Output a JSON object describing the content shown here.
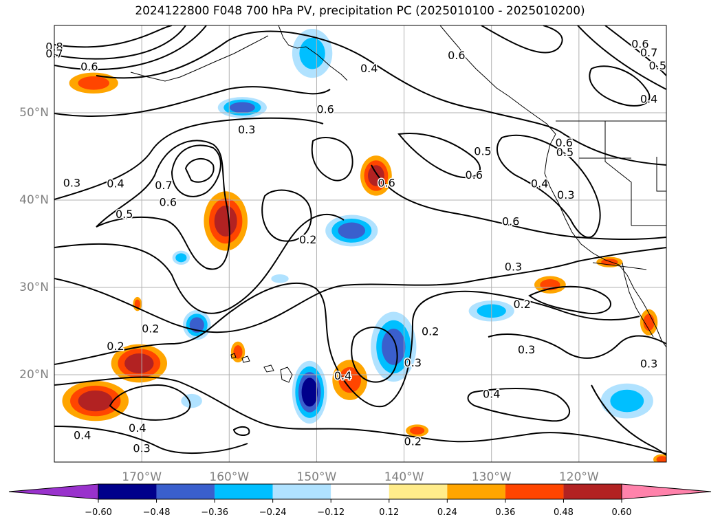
{
  "title": "2024122800 F048 700 hPa PV, precipitation PC (2025010100 - 2025010200)",
  "chart_data": {
    "type": "contour-map",
    "title": "2024122800 F048 700 hPa PV, precipitation PC (2025010100 - 2025010200)",
    "projection": "PlateCarree",
    "lon_range": [
      -180,
      -110
    ],
    "lat_range": [
      10,
      60
    ],
    "grid": true,
    "lat_ticks": [
      {
        "value": 20,
        "label": "20°N"
      },
      {
        "value": 30,
        "label": "30°N"
      },
      {
        "value": 40,
        "label": "40°N"
      },
      {
        "value": 50,
        "label": "50°N"
      }
    ],
    "lon_ticks": [
      {
        "value": -170,
        "label": "170°W"
      },
      {
        "value": -160,
        "label": "160°W"
      },
      {
        "value": -150,
        "label": "150°W"
      },
      {
        "value": -140,
        "label": "140°W"
      },
      {
        "value": -130,
        "label": "130°W"
      },
      {
        "value": -120,
        "label": "120°W"
      }
    ],
    "contour_variable": "700 hPa PV",
    "contour_labels": [
      {
        "text": "0.8",
        "lon": -180,
        "lat": 57.5
      },
      {
        "text": "0.7",
        "lon": -180,
        "lat": 56.7
      },
      {
        "text": "0.6",
        "lon": -176,
        "lat": 55.2
      },
      {
        "text": "0.4",
        "lon": -144,
        "lat": 55
      },
      {
        "text": "0.6",
        "lon": -134,
        "lat": 56.5
      },
      {
        "text": "0.6",
        "lon": -113,
        "lat": 57.8
      },
      {
        "text": "0.7",
        "lon": -112,
        "lat": 56.8
      },
      {
        "text": "0.5",
        "lon": -111,
        "lat": 55.3
      },
      {
        "text": "0.4",
        "lon": -112,
        "lat": 51.5
      },
      {
        "text": "0.6",
        "lon": -149,
        "lat": 50.3
      },
      {
        "text": "0.3",
        "lon": -158,
        "lat": 48
      },
      {
        "text": "0.5",
        "lon": -131,
        "lat": 45.5
      },
      {
        "text": "0.6",
        "lon": -132,
        "lat": 42.8
      },
      {
        "text": "0.6",
        "lon": -142,
        "lat": 41.9
      },
      {
        "text": "0.6",
        "lon": -121.7,
        "lat": 46.5
      },
      {
        "text": "0.5",
        "lon": -121.6,
        "lat": 45.4
      },
      {
        "text": "0.4",
        "lon": -124.5,
        "lat": 41.8
      },
      {
        "text": "0.3",
        "lon": -121.5,
        "lat": 40.5
      },
      {
        "text": "0.6",
        "lon": -127.8,
        "lat": 37.5
      },
      {
        "text": "0.3",
        "lon": -178,
        "lat": 41.9
      },
      {
        "text": "0.4",
        "lon": -173,
        "lat": 41.8
      },
      {
        "text": "0.7",
        "lon": -167.5,
        "lat": 41.6
      },
      {
        "text": "0.6",
        "lon": -167,
        "lat": 39.7
      },
      {
        "text": "0.5",
        "lon": -172,
        "lat": 38.3
      },
      {
        "text": "0.2",
        "lon": -151,
        "lat": 35.4
      },
      {
        "text": "0.3",
        "lon": -127.5,
        "lat": 32.3
      },
      {
        "text": "0.2",
        "lon": -126.5,
        "lat": 28
      },
      {
        "text": "0.2",
        "lon": -169,
        "lat": 25.2
      },
      {
        "text": "0.2",
        "lon": -137,
        "lat": 24.9
      },
      {
        "text": "0.2",
        "lon": -173,
        "lat": 23.2
      },
      {
        "text": "0.3",
        "lon": -139,
        "lat": 21.3
      },
      {
        "text": "0.3",
        "lon": -126,
        "lat": 22.8
      },
      {
        "text": "0.3",
        "lon": -112,
        "lat": 21.2
      },
      {
        "text": "0.4",
        "lon": -147,
        "lat": 19.8
      },
      {
        "text": "0.4",
        "lon": -130,
        "lat": 17.7
      },
      {
        "text": "0.4",
        "lon": -176.8,
        "lat": 13
      },
      {
        "text": "0.4",
        "lon": -170.5,
        "lat": 13.8
      },
      {
        "text": "0.3",
        "lon": -170,
        "lat": 11.5
      },
      {
        "text": "0.2",
        "lon": -139,
        "lat": 12.3
      }
    ],
    "fill_variable": "precipitation PC",
    "colorbar": {
      "extend": "both",
      "colors": [
        "#9932CC",
        "#00008B",
        "#3A5FCD",
        "#00BFFF",
        "#B0E2FF",
        "#FFFFFF",
        "#FFEC8B",
        "#FFA500",
        "#FF4500",
        "#B22222",
        "#FF82AB"
      ],
      "levels": [
        -0.72,
        -0.6,
        -0.48,
        -0.36,
        -0.24,
        -0.12,
        0.12,
        0.24,
        0.36,
        0.48,
        0.6,
        0.72
      ],
      "tick_labels": [
        "−0.60",
        "−0.48",
        "−0.36",
        "−0.24",
        "−0.12",
        "0.12",
        "0.24",
        "0.36",
        "0.48",
        "0.60"
      ],
      "tick_values": [
        -0.6,
        -0.48,
        -0.36,
        -0.24,
        -0.12,
        0.12,
        0.24,
        0.36,
        0.48,
        0.6
      ]
    },
    "fill_blobs": [
      {
        "lon": -175.5,
        "lat": 53.4,
        "rx": 2.8,
        "ry": 1.2,
        "values": [
          0.24,
          0.36
        ]
      },
      {
        "lon": -158.5,
        "lat": 50.6,
        "rx": 2.8,
        "ry": 1.2,
        "values": [
          -0.24,
          -0.36,
          -0.48
        ]
      },
      {
        "lon": -150.5,
        "lat": 56.8,
        "rx": 2.3,
        "ry": 2.8,
        "values": [
          -0.24,
          -0.36
        ]
      },
      {
        "lon": -143.2,
        "lat": 42.8,
        "rx": 1.8,
        "ry": 2.3,
        "values": [
          0.24,
          0.36,
          0.48
        ]
      },
      {
        "lon": -160.4,
        "lat": 37.6,
        "rx": 2.5,
        "ry": 3.4,
        "values": [
          0.24,
          0.36,
          0.48
        ]
      },
      {
        "lon": -146,
        "lat": 36.5,
        "rx": 3,
        "ry": 1.8,
        "values": [
          -0.24,
          -0.36,
          -0.48
        ]
      },
      {
        "lon": -165.5,
        "lat": 33.4,
        "rx": 1,
        "ry": 0.8,
        "values": [
          -0.24,
          -0.36
        ]
      },
      {
        "lon": -154.2,
        "lat": 31,
        "rx": 1,
        "ry": 0.5,
        "values": [
          -0.24
        ]
      },
      {
        "lon": -163.7,
        "lat": 25.7,
        "rx": 1.6,
        "ry": 1.7,
        "values": [
          -0.24,
          -0.36,
          -0.48
        ]
      },
      {
        "lon": -159,
        "lat": 22.6,
        "rx": 0.8,
        "ry": 1.2,
        "values": [
          0.24,
          0.36
        ]
      },
      {
        "lon": -170.5,
        "lat": 28.1,
        "rx": 0.5,
        "ry": 0.8,
        "values": [
          0.24,
          0.36
        ]
      },
      {
        "lon": -170.3,
        "lat": 21.3,
        "rx": 3.2,
        "ry": 2.2,
        "values": [
          0.24,
          0.36,
          0.48
        ]
      },
      {
        "lon": -175.3,
        "lat": 17,
        "rx": 3.8,
        "ry": 2.3,
        "values": [
          0.24,
          0.36,
          0.48
        ]
      },
      {
        "lon": -164.3,
        "lat": 17,
        "rx": 1.2,
        "ry": 0.8,
        "values": [
          -0.24
        ]
      },
      {
        "lon": -150.8,
        "lat": 18,
        "rx": 2,
        "ry": 3.6,
        "values": [
          -0.24,
          -0.36,
          -0.48,
          -0.6
        ]
      },
      {
        "lon": -146.2,
        "lat": 19.4,
        "rx": 2,
        "ry": 2.3,
        "values": [
          0.24,
          0.36
        ]
      },
      {
        "lon": -141.2,
        "lat": 23.2,
        "rx": 2.6,
        "ry": 4,
        "values": [
          -0.24,
          -0.36,
          -0.48
        ]
      },
      {
        "lon": -138.5,
        "lat": 13.6,
        "rx": 1.3,
        "ry": 0.7,
        "values": [
          0.24,
          0.36
        ]
      },
      {
        "lon": -130,
        "lat": 27.3,
        "rx": 2.6,
        "ry": 1.2,
        "values": [
          -0.24,
          -0.36
        ]
      },
      {
        "lon": -123.3,
        "lat": 30.3,
        "rx": 1.8,
        "ry": 1,
        "values": [
          0.24,
          0.36
        ]
      },
      {
        "lon": -116.5,
        "lat": 32.9,
        "rx": 1.5,
        "ry": 0.6,
        "values": [
          0.24,
          0.36
        ]
      },
      {
        "lon": -112,
        "lat": 26,
        "rx": 1,
        "ry": 1.5,
        "values": [
          0.24,
          0.36
        ]
      },
      {
        "lon": -114.5,
        "lat": 17,
        "rx": 3,
        "ry": 2,
        "values": [
          -0.24,
          -0.36
        ]
      },
      {
        "lon": -110.5,
        "lat": 10.3,
        "rx": 1,
        "ry": 0.6,
        "values": [
          0.24,
          0.36
        ]
      }
    ]
  }
}
